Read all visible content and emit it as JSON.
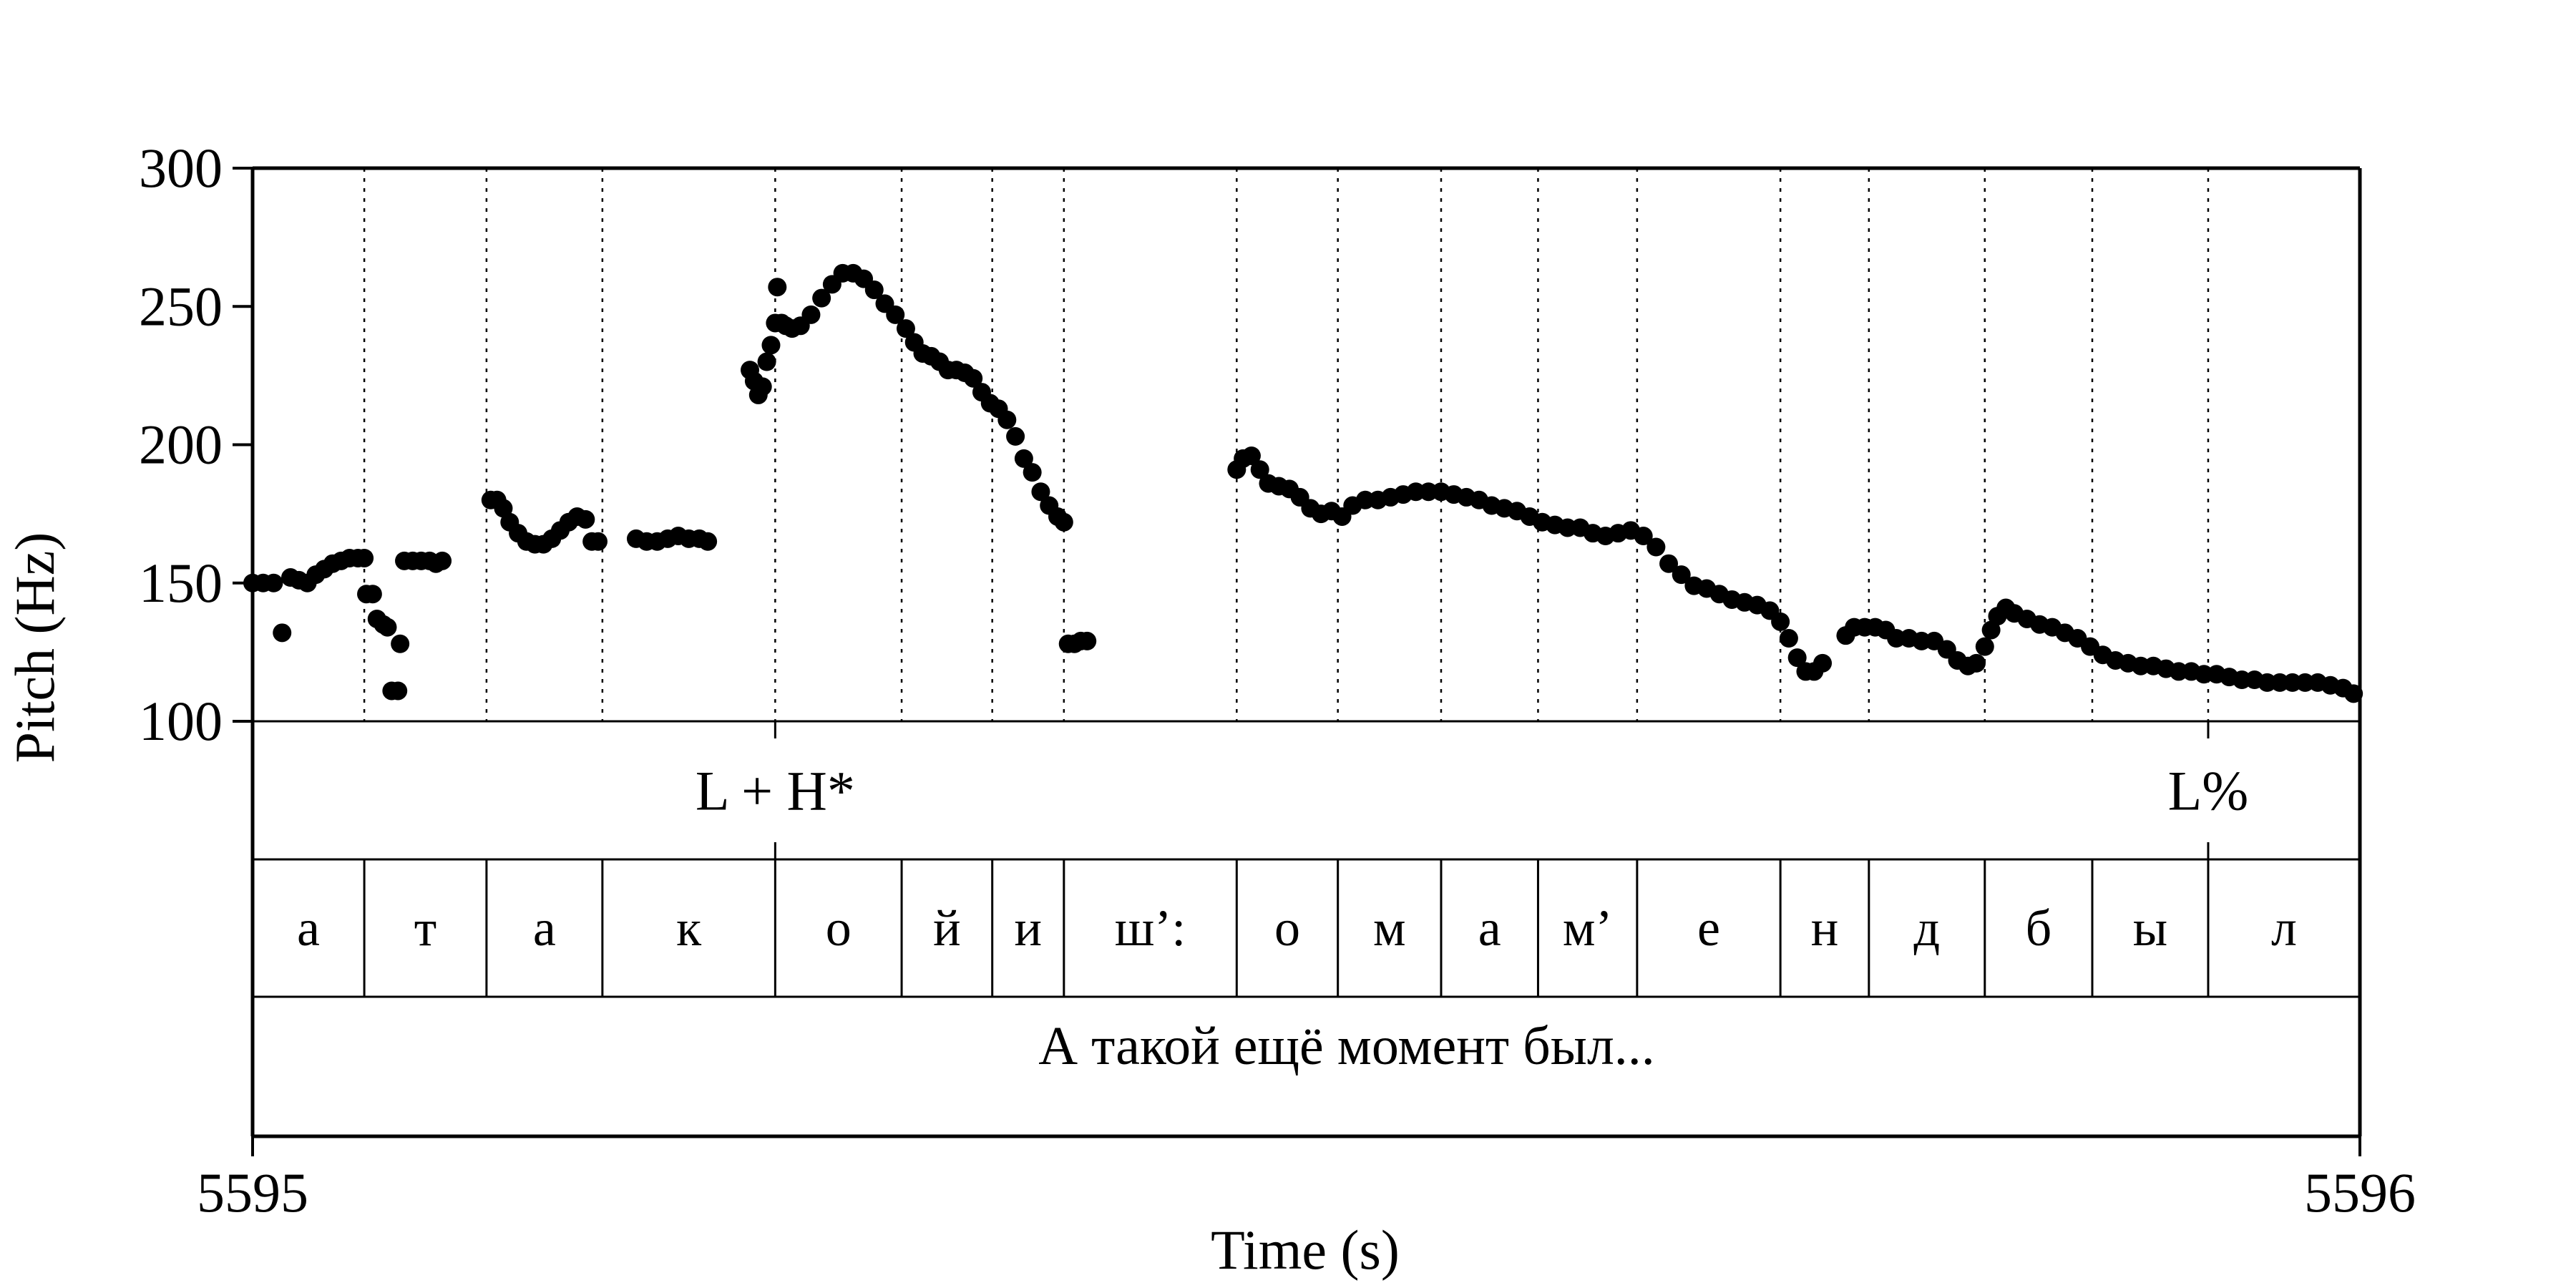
{
  "chart_data": {
    "type": "scatter",
    "xlabel": "Time (s)",
    "ylabel": "Pitch (Hz)",
    "xlim": [
      5595,
      5596
    ],
    "ylim": [
      100,
      300
    ],
    "x_ticks": [
      "5595",
      "5596"
    ],
    "y_ticks": [
      "100",
      "150",
      "200",
      "250",
      "300"
    ],
    "grid": "vertical dotted lines at segment boundaries",
    "tone_tier": [
      {
        "label": "L + H*",
        "time": 5595.248
      },
      {
        "label": "L%",
        "time": 5595.928
      }
    ],
    "segment_boundaries": [
      5595.053,
      5595.111,
      5595.166,
      5595.248,
      5595.308,
      5595.351,
      5595.385,
      5595.467,
      5595.515,
      5595.564,
      5595.61,
      5595.657,
      5595.725,
      5595.767,
      5595.822,
      5595.873,
      5595.928
    ],
    "segments": [
      "а",
      "т",
      "а",
      "к",
      "о",
      "й",
      "и",
      "ш’:",
      "о",
      "м",
      "а",
      "м’",
      "е",
      "н",
      "д",
      "б",
      "ы",
      "л"
    ],
    "sentence": "А такой ещё момент был...",
    "pitch_contour": [
      {
        "x": 5595.0,
        "y": 150
      },
      {
        "x": 5595.005,
        "y": 150
      },
      {
        "x": 5595.01,
        "y": 150
      },
      {
        "x": 5595.014,
        "y": 132
      },
      {
        "x": 5595.018,
        "y": 152
      },
      {
        "x": 5595.022,
        "y": 151
      },
      {
        "x": 5595.026,
        "y": 150
      },
      {
        "x": 5595.03,
        "y": 153
      },
      {
        "x": 5595.034,
        "y": 155
      },
      {
        "x": 5595.038,
        "y": 157
      },
      {
        "x": 5595.042,
        "y": 158
      },
      {
        "x": 5595.046,
        "y": 159
      },
      {
        "x": 5595.05,
        "y": 159
      },
      {
        "x": 5595.053,
        "y": 159
      },
      {
        "x": 5595.054,
        "y": 146
      },
      {
        "x": 5595.057,
        "y": 146
      },
      {
        "x": 5595.059,
        "y": 137
      },
      {
        "x": 5595.062,
        "y": 135
      },
      {
        "x": 5595.064,
        "y": 134
      },
      {
        "x": 5595.066,
        "y": 111
      },
      {
        "x": 5595.069,
        "y": 111
      },
      {
        "x": 5595.07,
        "y": 128
      },
      {
        "x": 5595.072,
        "y": 158
      },
      {
        "x": 5595.076,
        "y": 158
      },
      {
        "x": 5595.08,
        "y": 158
      },
      {
        "x": 5595.084,
        "y": 158
      },
      {
        "x": 5595.087,
        "y": 157
      },
      {
        "x": 5595.09,
        "y": 158
      },
      {
        "x": 5595.113,
        "y": 180
      },
      {
        "x": 5595.116,
        "y": 180
      },
      {
        "x": 5595.119,
        "y": 177
      },
      {
        "x": 5595.122,
        "y": 172
      },
      {
        "x": 5595.126,
        "y": 168
      },
      {
        "x": 5595.13,
        "y": 165
      },
      {
        "x": 5595.134,
        "y": 164
      },
      {
        "x": 5595.138,
        "y": 164
      },
      {
        "x": 5595.142,
        "y": 166
      },
      {
        "x": 5595.146,
        "y": 169
      },
      {
        "x": 5595.15,
        "y": 172
      },
      {
        "x": 5595.154,
        "y": 174
      },
      {
        "x": 5595.158,
        "y": 173
      },
      {
        "x": 5595.161,
        "y": 165
      },
      {
        "x": 5595.164,
        "y": 165
      },
      {
        "x": 5595.182,
        "y": 166
      },
      {
        "x": 5595.187,
        "y": 165
      },
      {
        "x": 5595.192,
        "y": 165
      },
      {
        "x": 5595.197,
        "y": 166
      },
      {
        "x": 5595.202,
        "y": 167
      },
      {
        "x": 5595.207,
        "y": 166
      },
      {
        "x": 5595.212,
        "y": 166
      },
      {
        "x": 5595.216,
        "y": 165
      },
      {
        "x": 5595.236,
        "y": 227
      },
      {
        "x": 5595.238,
        "y": 223
      },
      {
        "x": 5595.24,
        "y": 218
      },
      {
        "x": 5595.242,
        "y": 221
      },
      {
        "x": 5595.244,
        "y": 230
      },
      {
        "x": 5595.246,
        "y": 236
      },
      {
        "x": 5595.248,
        "y": 244
      },
      {
        "x": 5595.249,
        "y": 257
      },
      {
        "x": 5595.251,
        "y": 244
      },
      {
        "x": 5595.253,
        "y": 243
      },
      {
        "x": 5595.256,
        "y": 242
      },
      {
        "x": 5595.26,
        "y": 243
      },
      {
        "x": 5595.265,
        "y": 247
      },
      {
        "x": 5595.27,
        "y": 253
      },
      {
        "x": 5595.275,
        "y": 258
      },
      {
        "x": 5595.28,
        "y": 262
      },
      {
        "x": 5595.285,
        "y": 262
      },
      {
        "x": 5595.29,
        "y": 260
      },
      {
        "x": 5595.295,
        "y": 256
      },
      {
        "x": 5595.3,
        "y": 251
      },
      {
        "x": 5595.305,
        "y": 247
      },
      {
        "x": 5595.31,
        "y": 242
      },
      {
        "x": 5595.314,
        "y": 237
      },
      {
        "x": 5595.318,
        "y": 233
      },
      {
        "x": 5595.322,
        "y": 232
      },
      {
        "x": 5595.326,
        "y": 230
      },
      {
        "x": 5595.33,
        "y": 227
      },
      {
        "x": 5595.334,
        "y": 227
      },
      {
        "x": 5595.338,
        "y": 226
      },
      {
        "x": 5595.342,
        "y": 224
      },
      {
        "x": 5595.346,
        "y": 219
      },
      {
        "x": 5595.35,
        "y": 215
      },
      {
        "x": 5595.354,
        "y": 213
      },
      {
        "x": 5595.358,
        "y": 209
      },
      {
        "x": 5595.362,
        "y": 203
      },
      {
        "x": 5595.366,
        "y": 195
      },
      {
        "x": 5595.37,
        "y": 190
      },
      {
        "x": 5595.374,
        "y": 183
      },
      {
        "x": 5595.378,
        "y": 178
      },
      {
        "x": 5595.382,
        "y": 174
      },
      {
        "x": 5595.385,
        "y": 172
      },
      {
        "x": 5595.387,
        "y": 128
      },
      {
        "x": 5595.39,
        "y": 128
      },
      {
        "x": 5595.393,
        "y": 129
      },
      {
        "x": 5595.396,
        "y": 129
      },
      {
        "x": 5595.467,
        "y": 191
      },
      {
        "x": 5595.47,
        "y": 195
      },
      {
        "x": 5595.474,
        "y": 196
      },
      {
        "x": 5595.478,
        "y": 191
      },
      {
        "x": 5595.482,
        "y": 186
      },
      {
        "x": 5595.487,
        "y": 185
      },
      {
        "x": 5595.492,
        "y": 184
      },
      {
        "x": 5595.497,
        "y": 181
      },
      {
        "x": 5595.502,
        "y": 177
      },
      {
        "x": 5595.507,
        "y": 175
      },
      {
        "x": 5595.512,
        "y": 176
      },
      {
        "x": 5595.517,
        "y": 174
      },
      {
        "x": 5595.522,
        "y": 178
      },
      {
        "x": 5595.528,
        "y": 180
      },
      {
        "x": 5595.534,
        "y": 180
      },
      {
        "x": 5595.54,
        "y": 181
      },
      {
        "x": 5595.546,
        "y": 182
      },
      {
        "x": 5595.552,
        "y": 183
      },
      {
        "x": 5595.558,
        "y": 183
      },
      {
        "x": 5595.564,
        "y": 183
      },
      {
        "x": 5595.57,
        "y": 182
      },
      {
        "x": 5595.576,
        "y": 181
      },
      {
        "x": 5595.582,
        "y": 180
      },
      {
        "x": 5595.588,
        "y": 178
      },
      {
        "x": 5595.594,
        "y": 177
      },
      {
        "x": 5595.6,
        "y": 176
      },
      {
        "x": 5595.606,
        "y": 174
      },
      {
        "x": 5595.612,
        "y": 172
      },
      {
        "x": 5595.618,
        "y": 171
      },
      {
        "x": 5595.624,
        "y": 170
      },
      {
        "x": 5595.63,
        "y": 170
      },
      {
        "x": 5595.636,
        "y": 168
      },
      {
        "x": 5595.642,
        "y": 167
      },
      {
        "x": 5595.648,
        "y": 168
      },
      {
        "x": 5595.654,
        "y": 169
      },
      {
        "x": 5595.66,
        "y": 167
      },
      {
        "x": 5595.666,
        "y": 163
      },
      {
        "x": 5595.672,
        "y": 157
      },
      {
        "x": 5595.678,
        "y": 153
      },
      {
        "x": 5595.684,
        "y": 149
      },
      {
        "x": 5595.69,
        "y": 148
      },
      {
        "x": 5595.696,
        "y": 146
      },
      {
        "x": 5595.702,
        "y": 144
      },
      {
        "x": 5595.708,
        "y": 143
      },
      {
        "x": 5595.714,
        "y": 142
      },
      {
        "x": 5595.72,
        "y": 140
      },
      {
        "x": 5595.725,
        "y": 136
      },
      {
        "x": 5595.729,
        "y": 130
      },
      {
        "x": 5595.733,
        "y": 123
      },
      {
        "x": 5595.737,
        "y": 118
      },
      {
        "x": 5595.741,
        "y": 118
      },
      {
        "x": 5595.745,
        "y": 121
      },
      {
        "x": 5595.756,
        "y": 131
      },
      {
        "x": 5595.76,
        "y": 134
      },
      {
        "x": 5595.765,
        "y": 134
      },
      {
        "x": 5595.77,
        "y": 134
      },
      {
        "x": 5595.775,
        "y": 133
      },
      {
        "x": 5595.78,
        "y": 130
      },
      {
        "x": 5595.786,
        "y": 130
      },
      {
        "x": 5595.792,
        "y": 129
      },
      {
        "x": 5595.798,
        "y": 129
      },
      {
        "x": 5595.804,
        "y": 126
      },
      {
        "x": 5595.809,
        "y": 122
      },
      {
        "x": 5595.814,
        "y": 120
      },
      {
        "x": 5595.818,
        "y": 121
      },
      {
        "x": 5595.822,
        "y": 127
      },
      {
        "x": 5595.825,
        "y": 133
      },
      {
        "x": 5595.828,
        "y": 138
      },
      {
        "x": 5595.832,
        "y": 141
      },
      {
        "x": 5595.836,
        "y": 139
      },
      {
        "x": 5595.842,
        "y": 137
      },
      {
        "x": 5595.848,
        "y": 135
      },
      {
        "x": 5595.854,
        "y": 134
      },
      {
        "x": 5595.86,
        "y": 132
      },
      {
        "x": 5595.866,
        "y": 130
      },
      {
        "x": 5595.872,
        "y": 127
      },
      {
        "x": 5595.878,
        "y": 124
      },
      {
        "x": 5595.884,
        "y": 122
      },
      {
        "x": 5595.89,
        "y": 121
      },
      {
        "x": 5595.896,
        "y": 120
      },
      {
        "x": 5595.902,
        "y": 120
      },
      {
        "x": 5595.908,
        "y": 119
      },
      {
        "x": 5595.914,
        "y": 118
      },
      {
        "x": 5595.92,
        "y": 118
      },
      {
        "x": 5595.926,
        "y": 117
      },
      {
        "x": 5595.932,
        "y": 117
      },
      {
        "x": 5595.938,
        "y": 116
      },
      {
        "x": 5595.944,
        "y": 115
      },
      {
        "x": 5595.95,
        "y": 115
      },
      {
        "x": 5595.956,
        "y": 114
      },
      {
        "x": 5595.962,
        "y": 114
      },
      {
        "x": 5595.968,
        "y": 114
      },
      {
        "x": 5595.974,
        "y": 114
      },
      {
        "x": 5595.98,
        "y": 114
      },
      {
        "x": 5595.986,
        "y": 113
      },
      {
        "x": 5595.992,
        "y": 112
      },
      {
        "x": 5595.997,
        "y": 110
      }
    ]
  }
}
